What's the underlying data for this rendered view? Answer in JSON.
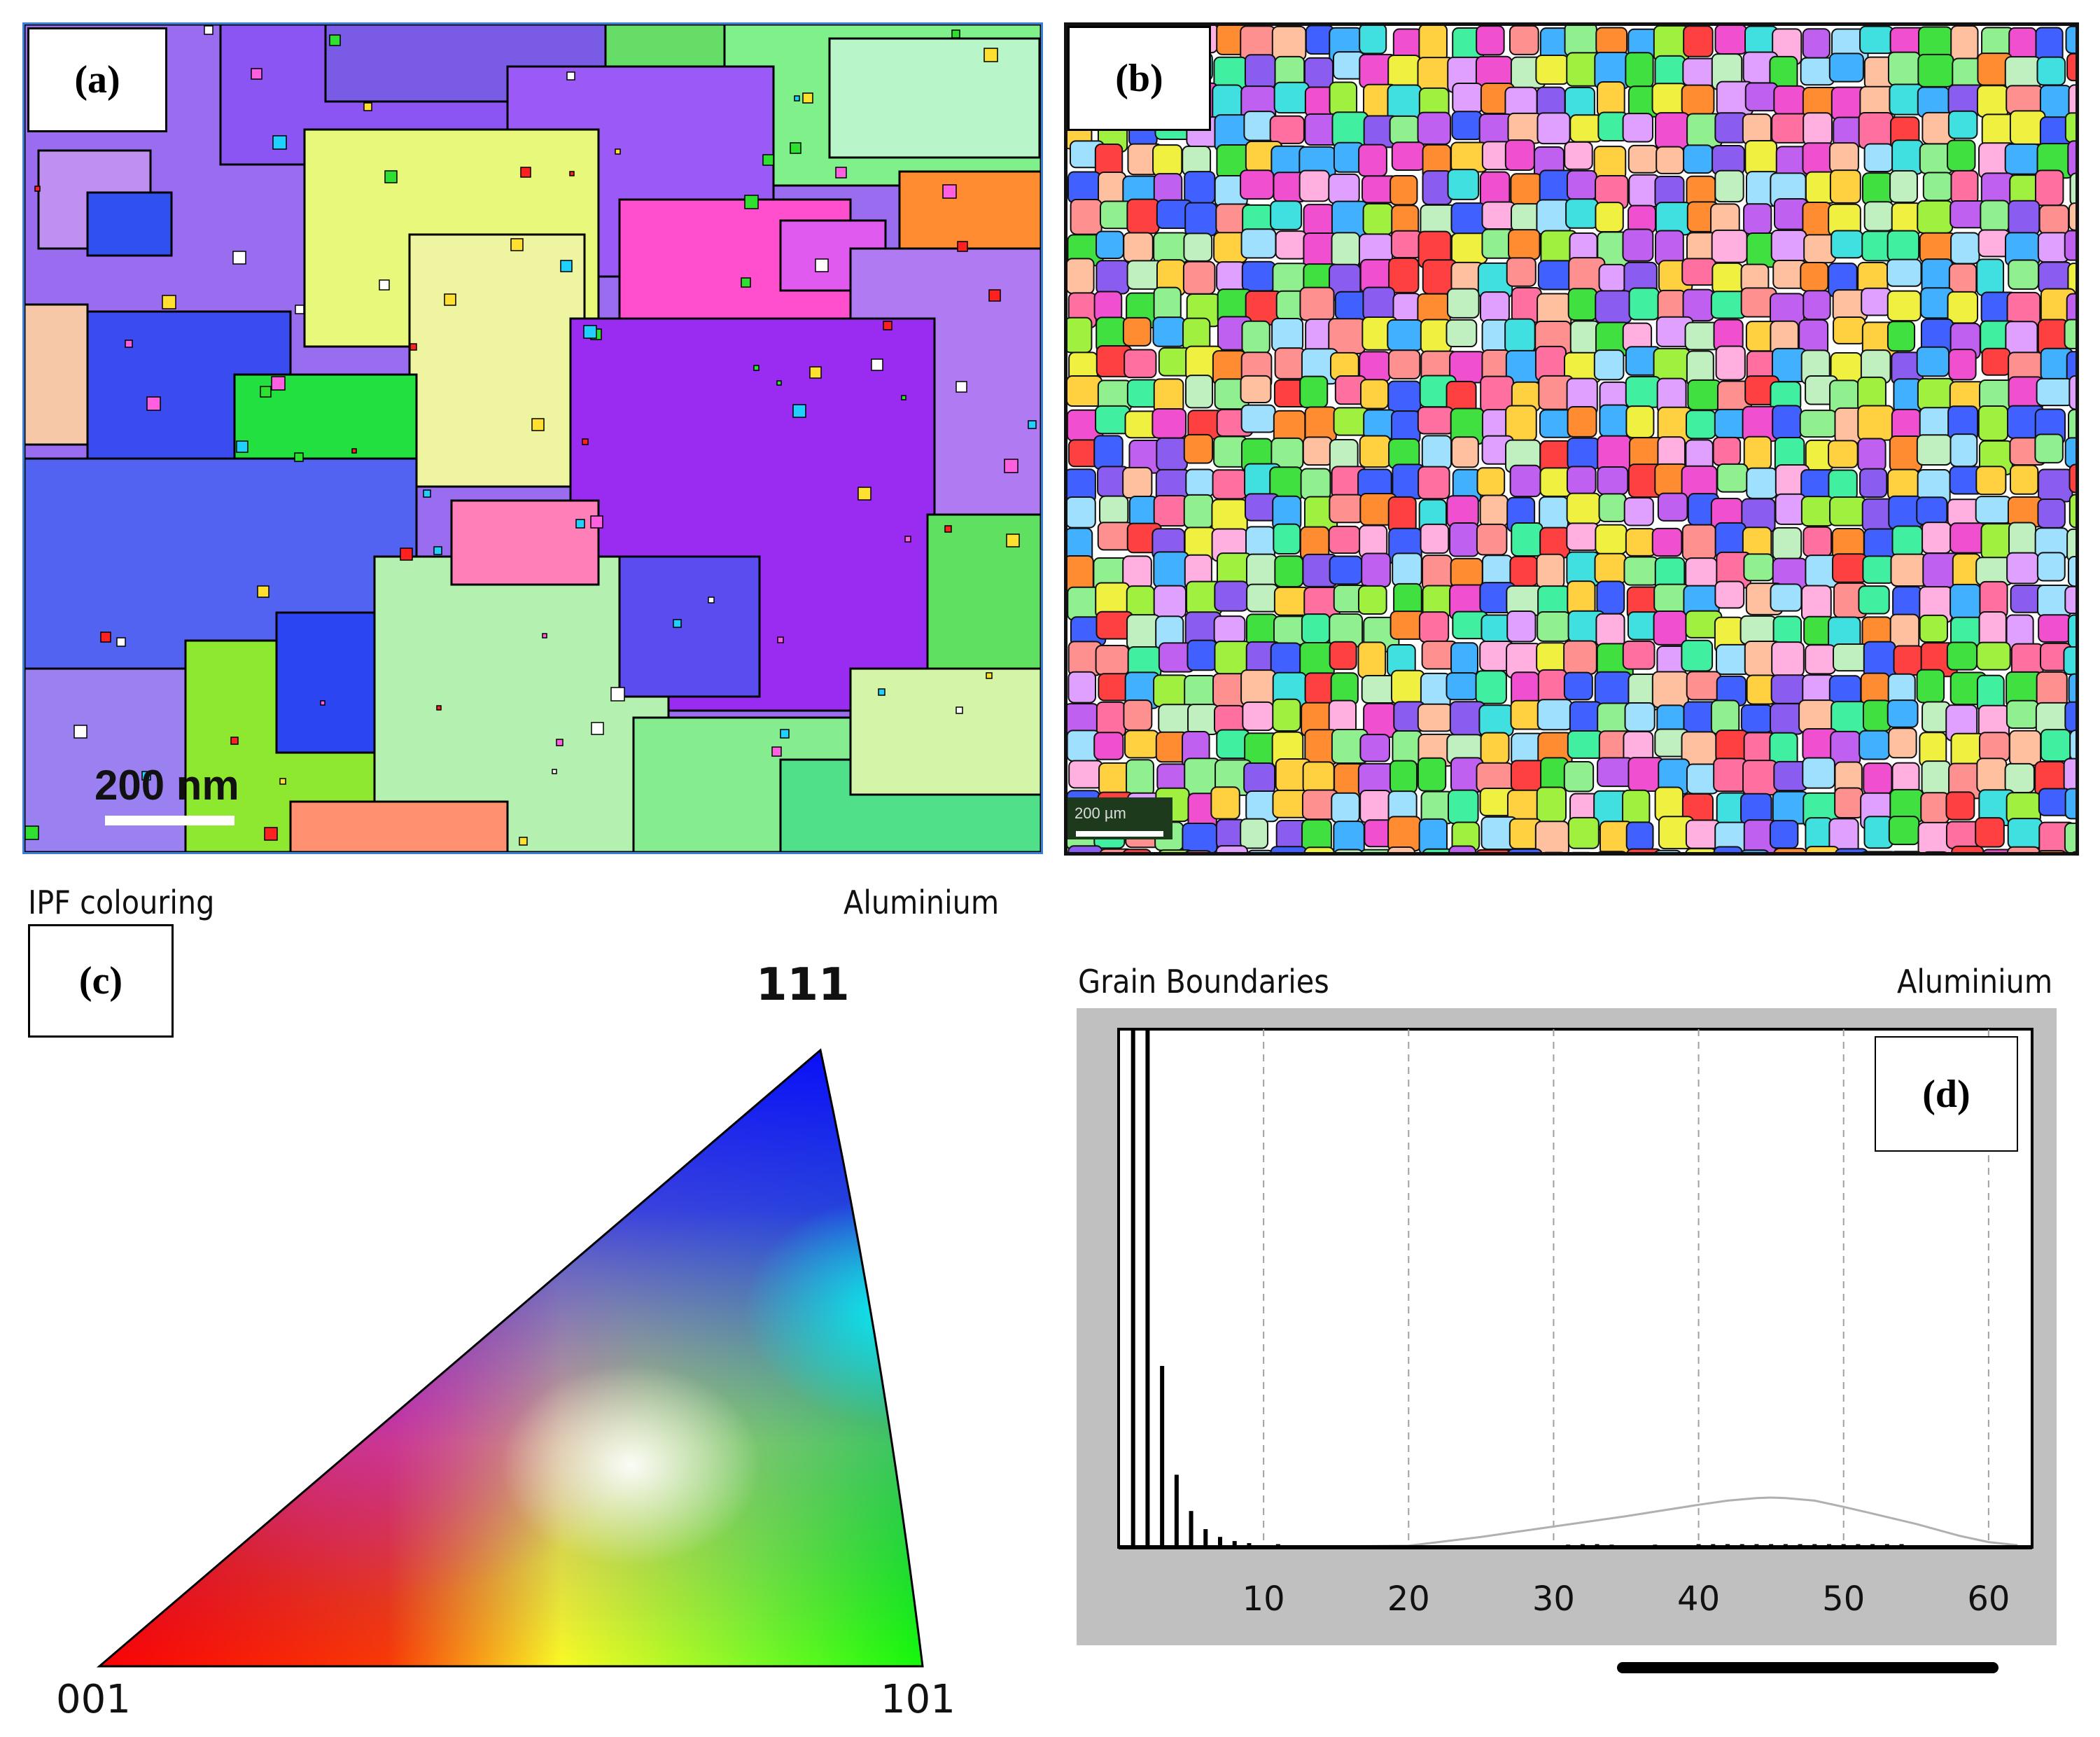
{
  "panel_a": {
    "tag": "(a)",
    "scale_label": "200 nm"
  },
  "panel_b": {
    "tag": "(b)",
    "scale_label": "200 µm"
  },
  "panel_c": {
    "tag": "(c)",
    "header_left": "IPF colouring",
    "header_right": "Aluminium",
    "corner_top": "111",
    "corner_left": "001",
    "corner_right": "101"
  },
  "panel_d": {
    "tag": "(d)",
    "header_left": "Grain Boundaries",
    "header_right": "Aluminium"
  },
  "chart_data": {
    "type": "bar",
    "title": "Grain Boundaries",
    "xlabel": "",
    "ylabel": "",
    "xlim": [
      0,
      63
    ],
    "ylim": [
      0,
      1
    ],
    "xticks": [
      10,
      20,
      30,
      40,
      50,
      60
    ],
    "grid": "vertical dashed",
    "x": [
      1,
      2,
      3,
      4,
      5,
      6,
      7,
      8,
      9,
      11,
      17,
      19,
      21,
      31,
      32,
      33,
      34,
      37,
      40,
      41,
      42,
      43,
      44,
      45,
      46,
      47,
      48,
      49,
      50,
      51,
      52,
      53,
      54
    ],
    "values": [
      1.0,
      1.0,
      0.35,
      0.14,
      0.07,
      0.035,
      0.02,
      0.012,
      0.008,
      0.006,
      0.004,
      0.003,
      0.004,
      0.005,
      0.006,
      0.006,
      0.005,
      0.005,
      0.006,
      0.006,
      0.006,
      0.006,
      0.006,
      0.006,
      0.006,
      0.006,
      0.006,
      0.006,
      0.006,
      0.006,
      0.006,
      0.006,
      0.006
    ],
    "reference_curve": {
      "x": [
        0,
        10,
        20,
        25,
        30,
        35,
        40,
        42,
        44,
        45,
        46,
        48,
        50,
        52,
        55,
        58,
        60,
        62
      ],
      "y": [
        0,
        0,
        0.003,
        0.02,
        0.04,
        0.06,
        0.082,
        0.09,
        0.095,
        0.096,
        0.095,
        0.09,
        0.078,
        0.065,
        0.045,
        0.022,
        0.01,
        0.004
      ]
    }
  }
}
